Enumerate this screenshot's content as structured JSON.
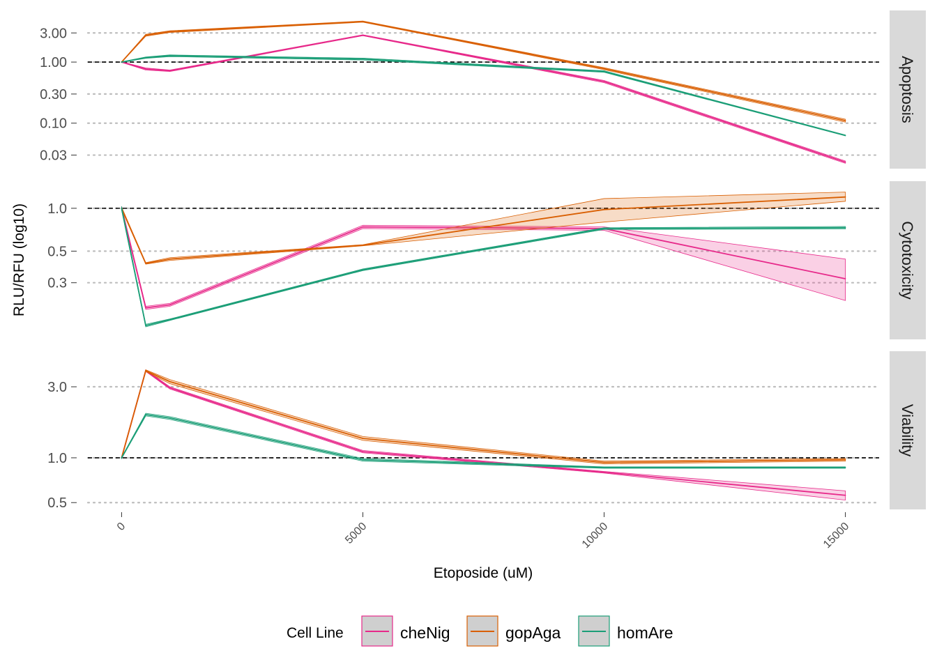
{
  "chart_data": {
    "type": "line",
    "xlabel": "Etoposide (uM)",
    "ylabel": "RLU/RFU (log10)",
    "x_ticks": [
      0,
      5000,
      10000,
      15000
    ],
    "x_tick_labels": [
      "0",
      "5000",
      "10000",
      "15000"
    ],
    "xlim": [
      -700,
      15700
    ],
    "x": [
      0,
      500,
      1000,
      5000,
      10000,
      15000
    ],
    "y_scale": "log10",
    "reference_line": 1.0,
    "grid": "horizontal dotted",
    "legend": {
      "title": "Cell Line",
      "placement": "bottom",
      "entries": [
        {
          "name": "cheNig",
          "color": "#e7298a"
        },
        {
          "name": "gopAga",
          "color": "#d95f02"
        },
        {
          "name": "homAre",
          "color": "#1b9e77"
        }
      ]
    },
    "panels": [
      {
        "name": "Apoptosis",
        "y_ticks": [
          0.03,
          0.1,
          0.3,
          1.0,
          3.0
        ],
        "y_tick_labels": [
          "0.03",
          "0.10",
          "0.30",
          "1.00",
          "3.00"
        ],
        "ylim": [
          0.018,
          7.0
        ],
        "series": [
          {
            "name": "cheNig",
            "values": [
              1.0,
              0.77,
              0.72,
              2.75,
              0.48,
              0.023
            ],
            "lower": [
              0.99,
              0.74,
              0.7,
              2.7,
              0.46,
              0.022
            ],
            "upper": [
              1.01,
              0.8,
              0.74,
              2.8,
              0.5,
              0.024
            ]
          },
          {
            "name": "gopAga",
            "values": [
              1.0,
              2.75,
              3.15,
              4.6,
              0.78,
              0.11
            ],
            "lower": [
              0.99,
              2.65,
              3.05,
              4.5,
              0.75,
              0.104
            ],
            "upper": [
              1.01,
              2.85,
              3.25,
              4.7,
              0.81,
              0.116
            ]
          },
          {
            "name": "homAre",
            "values": [
              1.0,
              1.18,
              1.27,
              1.12,
              0.7,
              0.063
            ],
            "lower": [
              0.99,
              1.15,
              1.23,
              1.08,
              0.68,
              0.062
            ],
            "upper": [
              1.01,
              1.21,
              1.31,
              1.16,
              0.72,
              0.064
            ]
          }
        ]
      },
      {
        "name": "Cytotoxicity",
        "y_ticks": [
          0.3,
          0.5,
          1.0
        ],
        "y_tick_labels": [
          "0.3",
          "0.5",
          "1.0"
        ],
        "ylim": [
          0.12,
          1.55
        ],
        "series": [
          {
            "name": "cheNig",
            "values": [
              1.0,
              0.2,
              0.21,
              0.74,
              0.72,
              0.32
            ],
            "lower": [
              0.97,
              0.195,
              0.205,
              0.72,
              0.7,
              0.225
            ],
            "upper": [
              1.03,
              0.205,
              0.215,
              0.76,
              0.74,
              0.44
            ]
          },
          {
            "name": "gopAga",
            "values": [
              1.0,
              0.41,
              0.44,
              0.55,
              0.98,
              1.2
            ],
            "lower": [
              0.98,
              0.405,
              0.43,
              0.545,
              0.8,
              1.12
            ],
            "upper": [
              1.02,
              0.415,
              0.45,
              0.555,
              1.17,
              1.3
            ]
          },
          {
            "name": "homAre",
            "values": [
              1.0,
              0.15,
              0.165,
              0.37,
              0.72,
              0.73
            ],
            "lower": [
              0.97,
              0.147,
              0.163,
              0.365,
              0.71,
              0.715
            ],
            "upper": [
              1.03,
              0.153,
              0.167,
              0.375,
              0.73,
              0.745
            ]
          }
        ]
      },
      {
        "name": "Viability",
        "y_ticks": [
          0.5,
          1.0,
          3.0
        ],
        "y_tick_labels": [
          "0.5",
          "1.0",
          "3.0"
        ],
        "ylim": [
          0.45,
          5.2
        ],
        "series": [
          {
            "name": "cheNig",
            "values": [
              1.0,
              3.85,
              2.95,
              1.1,
              0.8,
              0.56
            ],
            "lower": [
              0.99,
              3.8,
              2.9,
              1.08,
              0.79,
              0.52
            ],
            "upper": [
              1.01,
              3.9,
              3.0,
              1.12,
              0.81,
              0.6
            ]
          },
          {
            "name": "gopAga",
            "values": [
              1.0,
              3.85,
              3.25,
              1.35,
              0.93,
              0.97
            ],
            "lower": [
              0.99,
              3.8,
              3.15,
              1.31,
              0.91,
              0.95
            ],
            "upper": [
              1.01,
              3.9,
              3.35,
              1.39,
              0.95,
              0.99
            ]
          },
          {
            "name": "homAre",
            "values": [
              1.0,
              1.95,
              1.85,
              0.97,
              0.86,
              0.86
            ],
            "lower": [
              0.99,
              1.91,
              1.81,
              0.95,
              0.85,
              0.85
            ],
            "upper": [
              1.01,
              1.99,
              1.89,
              0.99,
              0.87,
              0.87
            ]
          }
        ]
      }
    ]
  }
}
